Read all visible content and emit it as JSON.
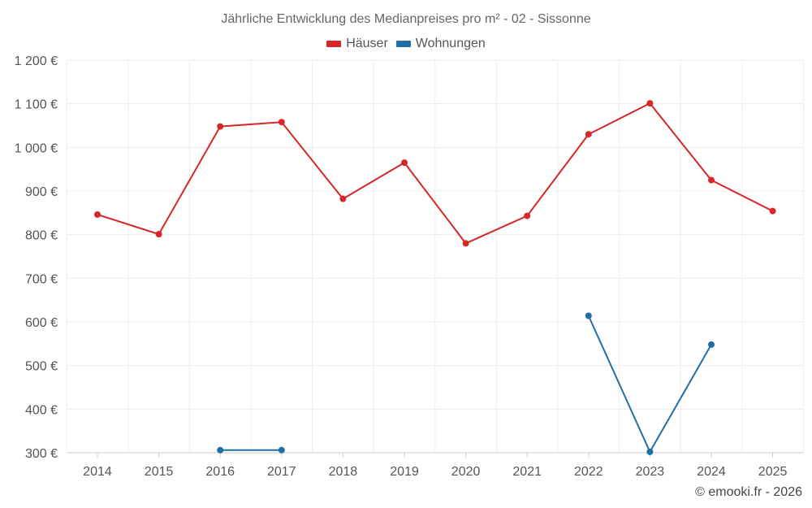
{
  "chart_data": {
    "type": "line",
    "title": "Jährliche Entwicklung des Medianpreises pro m² - 02 - Sissonne",
    "categories": [
      "2014",
      "2015",
      "2016",
      "2017",
      "2018",
      "2019",
      "2020",
      "2021",
      "2022",
      "2023",
      "2024",
      "2025"
    ],
    "ylim": [
      300,
      1200
    ],
    "yticks": [
      300,
      400,
      500,
      600,
      700,
      800,
      900,
      1000,
      1100,
      1200
    ],
    "ytick_labels": [
      "300 €",
      "400 €",
      "500 €",
      "600 €",
      "700 €",
      "800 €",
      "900 €",
      "1 000 €",
      "1 100 €",
      "1 200 €"
    ],
    "grid": true,
    "legend_position": "top-center",
    "series": [
      {
        "name": "Häuser",
        "color": "#d62728",
        "values": [
          846,
          801,
          1048,
          1058,
          882,
          965,
          780,
          843,
          1030,
          1101,
          925,
          854
        ]
      },
      {
        "name": "Wohnungen",
        "color": "#1f6fa6",
        "values": [
          null,
          null,
          306,
          306,
          null,
          null,
          null,
          null,
          614,
          302,
          548,
          null
        ]
      }
    ]
  },
  "credit": "© emooki.fr - 2026"
}
